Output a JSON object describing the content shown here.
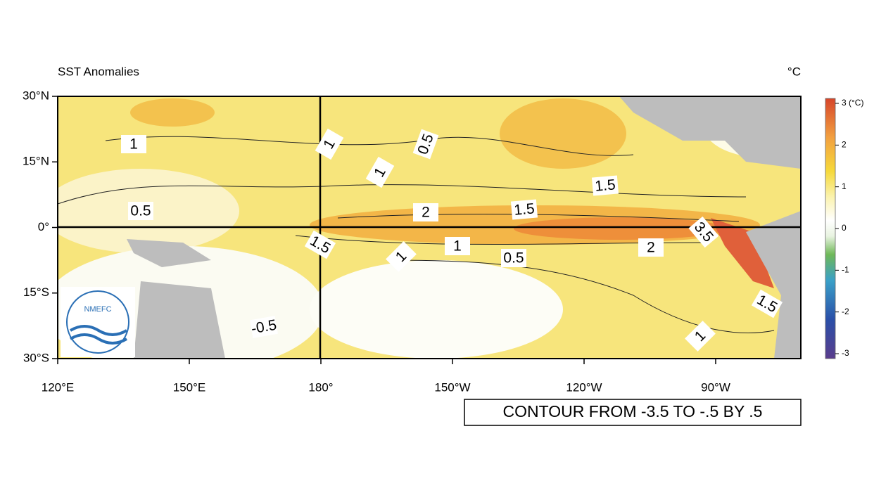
{
  "title": "SST Anomalies",
  "unit": "°C",
  "map": {
    "lon_ticks": [
      "120°E",
      "150°E",
      "180°",
      "150°W",
      "120°W",
      "90°W"
    ],
    "lat_ticks": [
      "30°N",
      "15°N",
      "0°",
      "15°S",
      "30°S"
    ],
    "contour_labels": [
      "1",
      "0.5",
      "-0.5",
      "1.5",
      "1",
      "0.5",
      "1",
      "2",
      "1",
      "1",
      "0.5",
      "1.5",
      "1.5",
      "2",
      "3.5",
      "1.5",
      "1"
    ]
  },
  "colorbar": {
    "lim": [
      -3,
      3
    ],
    "ticks": [
      {
        "value": 3,
        "label": "3 (°C)"
      },
      2,
      1,
      0,
      -1,
      -2,
      -3
    ]
  },
  "logo": "NMEFC",
  "note": "CONTOUR FROM -3.5 TO -.5 BY .5"
}
